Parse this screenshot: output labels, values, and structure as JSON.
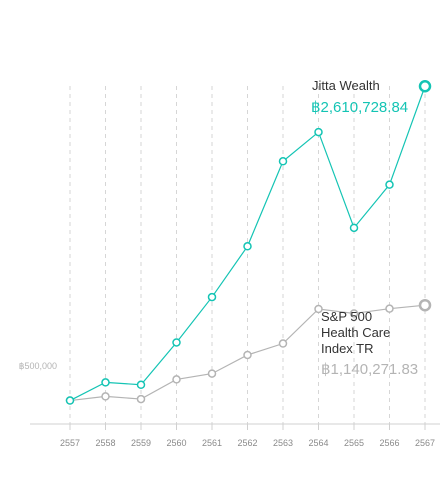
{
  "chart_data": {
    "type": "line",
    "x": [
      "2557",
      "2558",
      "2559",
      "2560",
      "2561",
      "2562",
      "2563",
      "2564",
      "2565",
      "2566",
      "2567"
    ],
    "series": [
      {
        "name": "Jitta Wealth",
        "final_value_label": "฿2,610,728.84",
        "color": "#14c4b4",
        "values": [
          500000,
          622000,
          606000,
          890000,
          1195000,
          1536000,
          2107000,
          2303000,
          1660000,
          1950000,
          2610728.84
        ]
      },
      {
        "name": "S&P 500 Health Care Index TR",
        "name_lines": [
          "S&P 500",
          "Health Care",
          "Index TR"
        ],
        "final_value_label": "฿1,140,271.83",
        "color": "#b4b4b4",
        "values": [
          500000,
          528000,
          510000,
          642000,
          681000,
          806000,
          883000,
          1115000,
          1085000,
          1117000,
          1140271.83
        ]
      }
    ],
    "ytick_label": "฿500,000",
    "ytick_value": 500000,
    "ylim": [
      -141000,
      3190000
    ],
    "grid": "vertical dashed",
    "title": "",
    "xlabel": "",
    "ylabel": ""
  }
}
